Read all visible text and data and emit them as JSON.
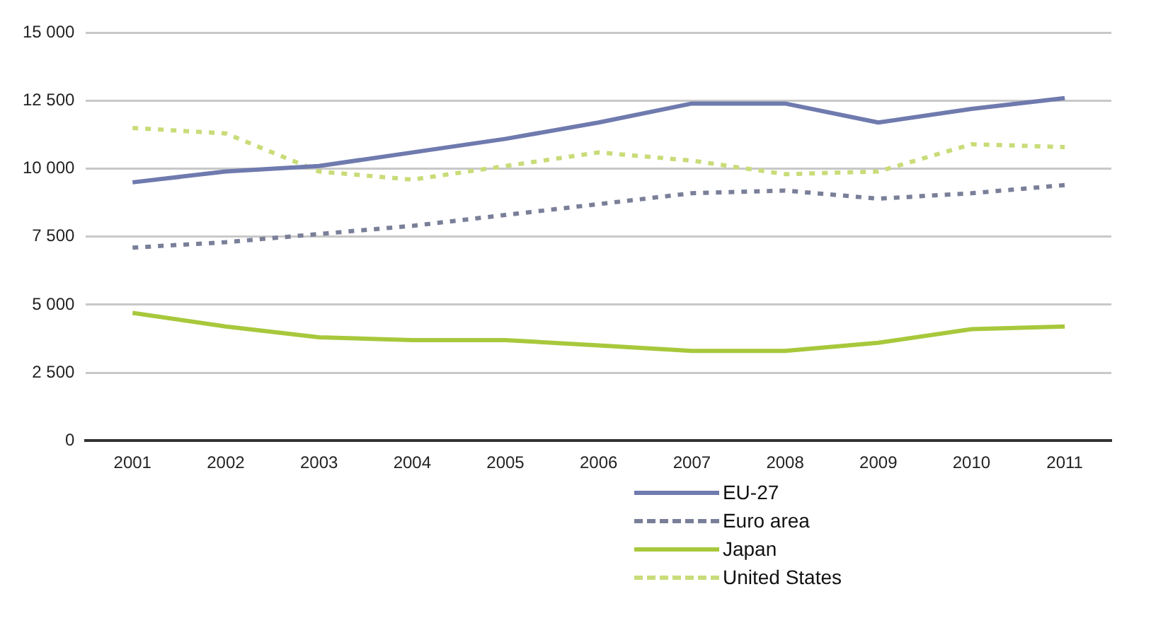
{
  "chart_data": {
    "type": "line",
    "categories": [
      "2001",
      "2002",
      "2003",
      "2004",
      "2005",
      "2006",
      "2007",
      "2008",
      "2009",
      "2010",
      "2011"
    ],
    "series": [
      {
        "name": "EU-27",
        "color": "#6f7aae",
        "line_style": "solid",
        "values": [
          9500,
          9900,
          10100,
          10600,
          11100,
          11700,
          12400,
          12400,
          11700,
          12200,
          12600
        ]
      },
      {
        "name": "Euro area",
        "color": "#7a7f99",
        "line_style": "dashed",
        "values": [
          7100,
          7300,
          7600,
          7900,
          8300,
          8700,
          9100,
          9200,
          8900,
          9100,
          9400
        ]
      },
      {
        "name": "Japan",
        "color": "#a8c83c",
        "line_style": "solid",
        "values": [
          4700,
          4200,
          3800,
          3700,
          3700,
          3500,
          3300,
          3300,
          3600,
          4100,
          4200
        ]
      },
      {
        "name": "United States",
        "color": "#c8dc78",
        "line_style": "dashed",
        "values": [
          11500,
          11300,
          9900,
          9600,
          10100,
          10600,
          10300,
          9800,
          9900,
          10900,
          10800
        ]
      }
    ],
    "ylim": [
      0,
      15000
    ],
    "yticks": [
      {
        "value": 0,
        "label": "0"
      },
      {
        "value": 2500,
        "label": "2 500"
      },
      {
        "value": 5000,
        "label": "5 000"
      },
      {
        "value": 7500,
        "label": "7 500"
      },
      {
        "value": 10000,
        "label": "10 000"
      },
      {
        "value": 12500,
        "label": "12 500"
      },
      {
        "value": 15000,
        "label": "15 000"
      }
    ],
    "grid": "y",
    "legend": "bottom",
    "marker": "none"
  }
}
